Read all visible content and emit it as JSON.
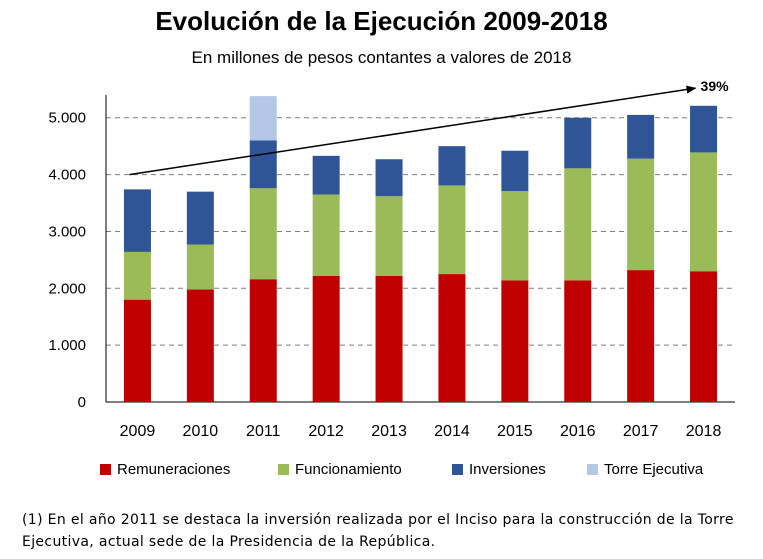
{
  "chart_data": {
    "type": "bar",
    "stacked": true,
    "title": "Evolución de la Ejecución 2009-2018",
    "subtitle": "En millones de pesos contantes a valores de 2018",
    "categories": [
      "2009",
      "2010",
      "2011",
      "2012",
      "2013",
      "2014",
      "2015",
      "2016",
      "2017",
      "2018"
    ],
    "series": [
      {
        "name": "Remuneraciones",
        "color": "#C00000",
        "values": [
          1800,
          1980,
          2160,
          2220,
          2220,
          2250,
          2140,
          2140,
          2320,
          2300
        ]
      },
      {
        "name": "Funcionamiento",
        "color": "#9BBB59",
        "values": [
          840,
          790,
          1600,
          1430,
          1400,
          1560,
          1570,
          1970,
          1960,
          2090
        ]
      },
      {
        "name": "Inversiones",
        "color": "#2F5597",
        "values": [
          1100,
          930,
          840,
          680,
          650,
          690,
          710,
          890,
          770,
          820
        ]
      },
      {
        "name": "Torre Ejecutiva",
        "color": "#B4C7E7",
        "values": [
          0,
          0,
          780,
          0,
          0,
          0,
          0,
          0,
          0,
          0
        ]
      }
    ],
    "yticks": [
      "0",
      "1.000",
      "2.000",
      "3.000",
      "4.000",
      "5.000"
    ],
    "ytick_values": [
      0,
      1000,
      2000,
      3000,
      4000,
      5000
    ],
    "ylim": [
      0,
      5400
    ],
    "grid": "dashed-horizontal",
    "legend_position": "bottom",
    "trend": {
      "from_category": "2009",
      "from_value": 4000,
      "to_category": "2018",
      "to_value": 5520,
      "label": "39%"
    }
  },
  "footnote": "(1) En el año 2011 se destaca la inversión realizada por el Inciso para la construcción de la Torre Ejecutiva, actual sede de la Presidencia de la República."
}
